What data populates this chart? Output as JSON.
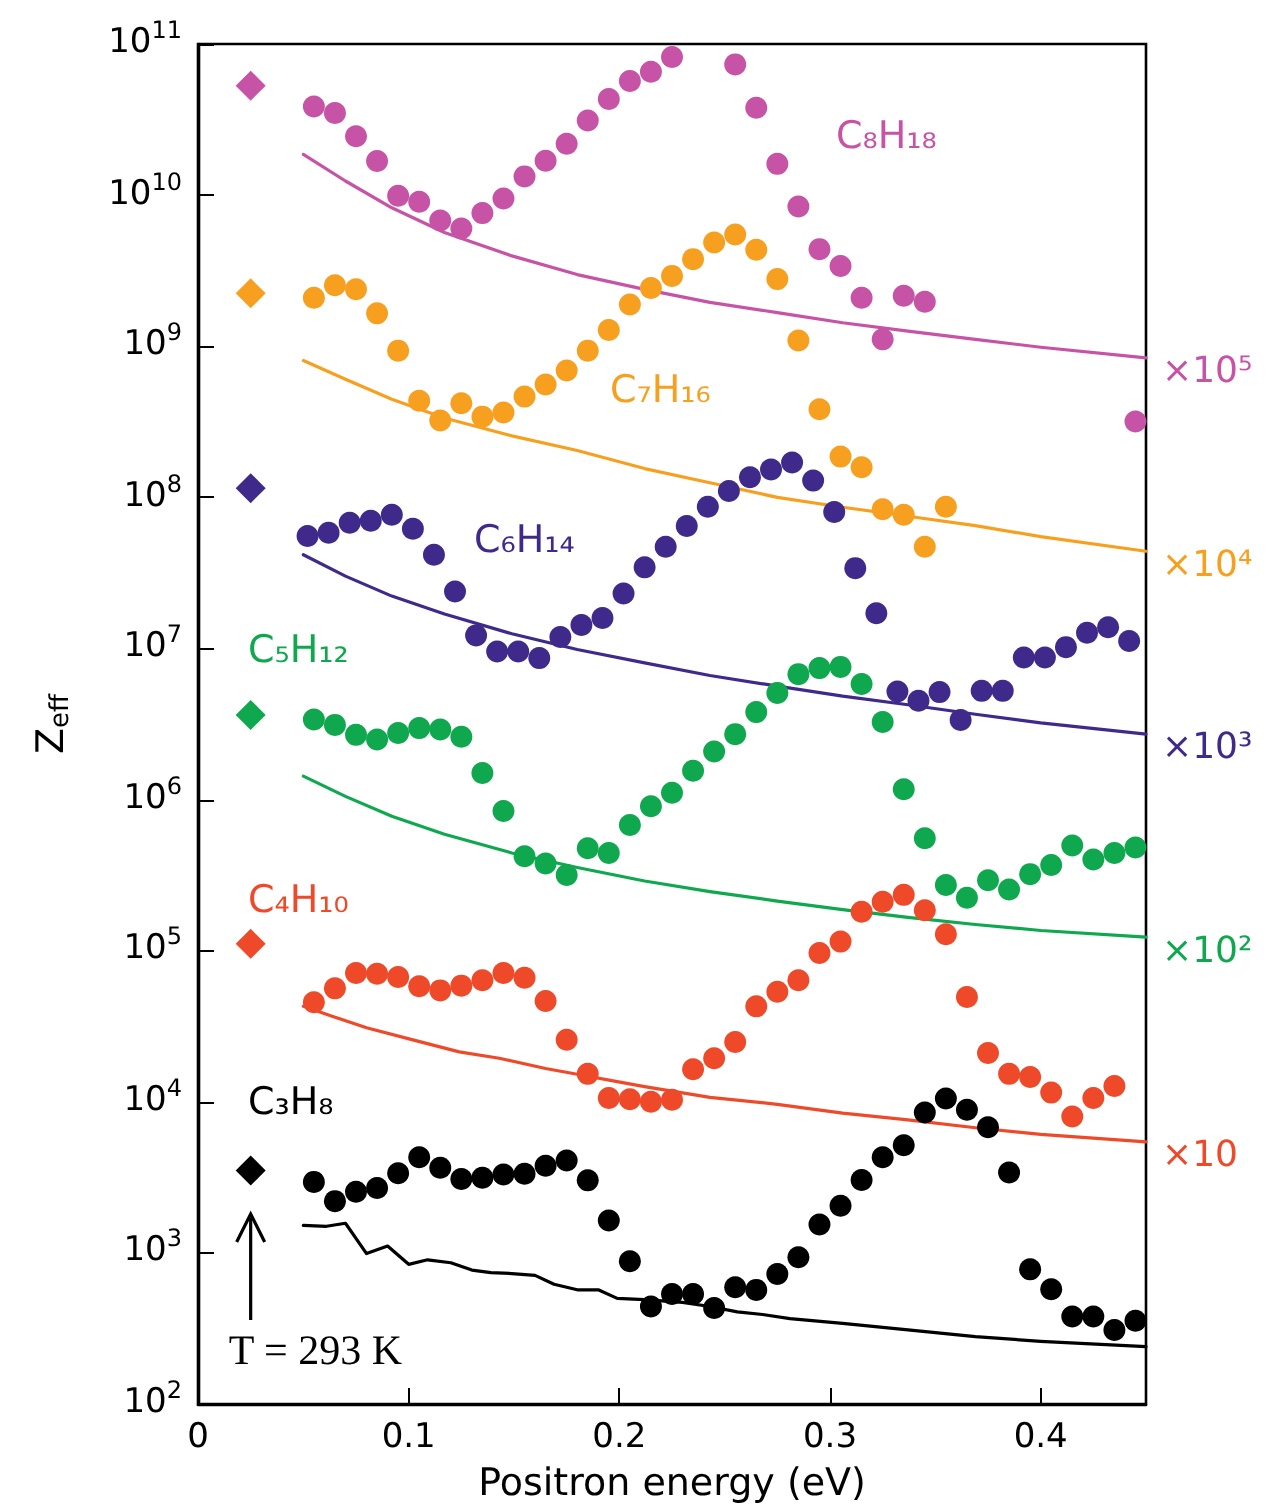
{
  "chart_data": {
    "type": "scatter",
    "xlabel": "Positron energy (eV)",
    "ylabel": "Z$_{eff}$",
    "xlim": [
      0,
      0.45
    ],
    "xticks": [
      0,
      0.1,
      0.2,
      0.3,
      0.4
    ],
    "ylim": [
      100,
      100000000000.0
    ],
    "log": "y",
    "yticks": [
      {
        "value": 100.0,
        "label": "10$^{2}$"
      },
      {
        "value": 1000.0,
        "label": "10$^{3}$"
      },
      {
        "value": 10000.0,
        "label": "10$^{4}$"
      },
      {
        "value": 100000.0,
        "label": "10$^{5}$"
      },
      {
        "value": 1000000.0,
        "label": "10$^{6}$"
      },
      {
        "value": 10000000.0,
        "label": "10$^{7}$"
      },
      {
        "value": 100000000.0,
        "label": "10$^{8}$"
      },
      {
        "value": 1000000000.0,
        "label": "10$^{9}$"
      },
      {
        "value": 10000000000.0,
        "label": "10$^{10}$"
      },
      {
        "value": 100000000000.0,
        "label": "10$^{11}$"
      }
    ],
    "grid": false,
    "legend": false,
    "series": [
      {
        "type": "line",
        "color": "#000000",
        "marker": "none",
        "line_style": "solid",
        "x": [
          0.05,
          0.061,
          0.07,
          0.08,
          0.09,
          0.1,
          0.109,
          0.12,
          0.13,
          0.139,
          0.149,
          0.16,
          0.169,
          0.18,
          0.19,
          0.199,
          0.212,
          0.23,
          0.243,
          0.256,
          0.268,
          0.281,
          0.306,
          0.337,
          0.369,
          0.4,
          0.45
        ],
        "values": [
          1520,
          1500,
          1570,
          990,
          1110,
          840,
          900,
          860,
          770,
          740,
          730,
          710,
          620,
          570,
          570,
          500,
          490,
          470,
          442,
          407,
          391,
          367,
          342,
          309,
          279,
          260,
          240
        ]
      },
      {
        "name": "C₃H₈",
        "color": "#000000",
        "marker": "circle",
        "x": [
          0.055,
          0.065,
          0.075,
          0.085,
          0.095,
          0.105,
          0.115,
          0.125,
          0.135,
          0.145,
          0.155,
          0.165,
          0.175,
          0.185,
          0.195,
          0.205,
          0.215,
          0.225,
          0.235,
          0.245,
          0.255,
          0.265,
          0.275,
          0.285,
          0.295,
          0.305,
          0.315,
          0.325,
          0.335,
          0.345,
          0.355,
          0.365,
          0.375,
          0.385,
          0.395,
          0.405,
          0.415,
          0.425,
          0.435,
          0.445
        ],
        "values": [
          2950,
          2200,
          2540,
          2690,
          3370,
          4300,
          3660,
          3080,
          3140,
          3300,
          3340,
          3770,
          4090,
          3020,
          1640,
          880,
          442,
          535,
          535,
          432,
          592,
          569,
          726,
          935,
          1540,
          2050,
          3040,
          4300,
          5160,
          8500,
          10500,
          8850,
          6790,
          3400,
          778,
          574,
          379,
          379,
          309,
          356
        ]
      },
      {
        "color": "#000000",
        "marker": "diamond",
        "x": [
          0.025
        ],
        "values": [
          3510
        ]
      },
      {
        "type": "line",
        "color": "#ee4a2a",
        "marker": "none",
        "line_style": "solid",
        "x": [
          0.05,
          0.064,
          0.08,
          0.102,
          0.124,
          0.143,
          0.165,
          0.18,
          0.199,
          0.212,
          0.243,
          0.275,
          0.306,
          0.337,
          0.369,
          0.4,
          0.45
        ],
        "values": [
          42800,
          36700,
          30900,
          25700,
          21400,
          19400,
          16600,
          15200,
          13600,
          12600,
          10700,
          9620,
          8410,
          7600,
          6730,
          6080,
          5430
        ]
      },
      {
        "name": "C₄H₁₀",
        "color": "#ee4a2a",
        "marker": "circle",
        "x": [
          0.055,
          0.065,
          0.075,
          0.085,
          0.095,
          0.105,
          0.115,
          0.125,
          0.135,
          0.145,
          0.155,
          0.165,
          0.175,
          0.185,
          0.195,
          0.205,
          0.215,
          0.225,
          0.235,
          0.245,
          0.255,
          0.265,
          0.275,
          0.285,
          0.295,
          0.305,
          0.315,
          0.325,
          0.335,
          0.345,
          0.355,
          0.365,
          0.375,
          0.385,
          0.395,
          0.405,
          0.415,
          0.425,
          0.435
        ],
        "values": [
          45500,
          56300,
          71100,
          70400,
          66900,
          58100,
          54600,
          58700,
          63700,
          71100,
          66200,
          46400,
          25700,
          15300,
          10600,
          10400,
          10000,
          10300,
          16400,
          19400,
          24900,
          42800,
          53500,
          63700,
          96600,
          114800,
          181000,
          211000,
          234000,
          185000,
          128500,
          49300,
          21000,
          15300,
          14600,
          11500,
          8000,
          10600,
          12700
        ]
      },
      {
        "color": "#ee4a2a",
        "marker": "diamond",
        "x": [
          0.025
        ],
        "values": [
          111000
        ]
      },
      {
        "type": "line",
        "color": "#10a84e",
        "marker": "none",
        "line_style": "solid",
        "x": [
          0.05,
          0.07,
          0.092,
          0.117,
          0.149,
          0.18,
          0.212,
          0.243,
          0.275,
          0.306,
          0.337,
          0.369,
          0.4,
          0.45
        ],
        "values": [
          1430000,
          1050000,
          776000,
          590000,
          443000,
          355000,
          289000,
          246000,
          213000,
          187000,
          166000,
          149000,
          136000,
          123000
        ]
      },
      {
        "name": "C₅H₁₂",
        "color": "#10a84e",
        "marker": "circle",
        "x": [
          0.055,
          0.065,
          0.075,
          0.085,
          0.095,
          0.105,
          0.115,
          0.125,
          0.135,
          0.145,
          0.155,
          0.165,
          0.175,
          0.185,
          0.195,
          0.205,
          0.215,
          0.225,
          0.235,
          0.245,
          0.255,
          0.265,
          0.275,
          0.285,
          0.295,
          0.305,
          0.315,
          0.325,
          0.335,
          0.345,
          0.355,
          0.365,
          0.375,
          0.385,
          0.395,
          0.405,
          0.415,
          0.425,
          0.435,
          0.445
        ],
        "values": [
          3390000,
          3120000,
          2680000,
          2500000,
          2760000,
          2970000,
          2910000,
          2600000,
          1500000,
          841000,
          422000,
          377000,
          317000,
          476000,
          443000,
          679000,
          904000,
          1110000,
          1550000,
          2080000,
          2710000,
          3790000,
          5080000,
          6760000,
          7410000,
          7550000,
          5810000,
          3260000,
          1170000,
          555000,
          272000,
          224000,
          292000,
          254000,
          321000,
          369000,
          496000,
          401000,
          443000,
          481000
        ]
      },
      {
        "color": "#10a84e",
        "marker": "diamond",
        "x": [
          0.025
        ],
        "values": [
          3630000
        ]
      },
      {
        "type": "line",
        "color": "#3f2a8c",
        "marker": "none",
        "line_style": "solid",
        "x": [
          0.05,
          0.07,
          0.092,
          0.117,
          0.149,
          0.18,
          0.212,
          0.243,
          0.275,
          0.306,
          0.337,
          0.369,
          0.4,
          0.45
        ],
        "values": [
          41700000,
          30100000,
          22200000,
          16900000,
          12500000,
          9840000,
          8030000,
          6620000,
          5630000,
          4830000,
          4240000,
          3670000,
          3220000,
          2710000
        ]
      },
      {
        "name": "C₆H₁₄",
        "color": "#3f2a8c",
        "marker": "circle",
        "x": [
          0.052,
          0.062,
          0.072,
          0.082,
          0.092,
          0.102,
          0.112,
          0.122,
          0.132,
          0.142,
          0.152,
          0.162,
          0.172,
          0.182,
          0.192,
          0.202,
          0.212,
          0.222,
          0.232,
          0.242,
          0.252,
          0.262,
          0.272,
          0.282,
          0.292,
          0.302,
          0.312,
          0.322,
          0.332,
          0.342,
          0.352,
          0.362,
          0.372,
          0.382,
          0.392,
          0.402,
          0.412,
          0.422,
          0.432,
          0.442
        ],
        "values": [
          55500000,
          58300000,
          67900000,
          70000000,
          76700000,
          61900000,
          41700000,
          23800000,
          12200000,
          9550000,
          9550000,
          8630000,
          11900000,
          14300000,
          15900000,
          23100000,
          34400000,
          47100000,
          64600000,
          86700000,
          110000000,
          136000000,
          153000000,
          170000000,
          129000000,
          80000000,
          34000000,
          17100000,
          5190000,
          4500000,
          5140000,
          3360000,
          5240000,
          5240000,
          8710000,
          8710000,
          10200000,
          12700000,
          13800000,
          11200000
        ]
      },
      {
        "color": "#3f2a8c",
        "marker": "diamond",
        "x": [
          0.025
        ],
        "values": [
          115000000
        ]
      },
      {
        "type": "line",
        "color": "#f7a020",
        "marker": "none",
        "line_style": "solid",
        "x": [
          0.05,
          0.07,
          0.092,
          0.117,
          0.149,
          0.18,
          0.212,
          0.243,
          0.275,
          0.306,
          0.337,
          0.369,
          0.4,
          0.45
        ],
        "values": [
          804000000,
          604000000,
          446000000,
          335000000,
          255000000,
          204000000,
          155000000,
          125000000,
          100000000,
          86000000,
          75000000,
          65000000,
          55000000,
          44000000
        ]
      },
      {
        "name": "C₇H₁₆",
        "color": "#f7a020",
        "marker": "circle",
        "x": [
          0.055,
          0.065,
          0.075,
          0.085,
          0.095,
          0.105,
          0.115,
          0.125,
          0.135,
          0.145,
          0.155,
          0.165,
          0.175,
          0.185,
          0.195,
          0.205,
          0.215,
          0.225,
          0.235,
          0.245,
          0.255,
          0.265,
          0.275,
          0.285,
          0.295,
          0.305,
          0.315,
          0.325,
          0.335,
          0.345,
          0.355
        ],
        "values": [
          2090000000,
          2530000000,
          2380000000,
          1650000000,
          935000000,
          436000000,
          322000000,
          419000000,
          342000000,
          364000000,
          464000000,
          558000000,
          690000000,
          935000000,
          1280000000,
          1890000000,
          2430000000,
          2920000000,
          3770000000,
          4850000000,
          5480000000,
          4350000000,
          2780000000,
          1090000000,
          383000000,
          186000000,
          158000000,
          83300000,
          76700000,
          47100000,
          86700000
        ]
      },
      {
        "color": "#f7a020",
        "marker": "diamond",
        "x": [
          0.025
        ],
        "values": [
          2240000000
        ]
      },
      {
        "type": "line",
        "color": "#c653a6",
        "marker": "none",
        "line_style": "solid",
        "x": [
          0.05,
          0.07,
          0.092,
          0.117,
          0.149,
          0.18,
          0.212,
          0.243,
          0.275,
          0.306,
          0.337,
          0.369,
          0.4,
          0.45
        ],
        "values": [
          18600000000,
          12400000000,
          8240000000,
          5660000000,
          3960000000,
          2980000000,
          2380000000,
          1950000000,
          1670000000,
          1430000000,
          1260000000,
          1110000000,
          985000000,
          837000000
        ]
      },
      {
        "name": "C₈H₁₈",
        "color": "#c653a6",
        "marker": "circle",
        "x": [
          0.055,
          0.065,
          0.075,
          0.085,
          0.095,
          0.105,
          0.115,
          0.125,
          0.135,
          0.145,
          0.155,
          0.165,
          0.175,
          0.185,
          0.195,
          0.205,
          0.215,
          0.225,
          0.255,
          0.265,
          0.275,
          0.285,
          0.295,
          0.305,
          0.315,
          0.325,
          0.335,
          0.345,
          0.445
        ],
        "values": [
          38600000000,
          34900000000,
          24500000000,
          16800000000,
          9910000000,
          9040000000,
          6790000000,
          6010000000,
          7600000000,
          9500000000,
          13300000000,
          16900000000,
          21900000000,
          31200000000,
          43200000000,
          56900000000,
          65600000000,
          82000000000,
          73300000000,
          37900000000,
          16100000000,
          8410000000,
          4390000000,
          3400000000,
          2090000000,
          1110000000,
          2160000000,
          1970000000,
          318000000
        ]
      },
      {
        "color": "#c653a6",
        "marker": "diamond",
        "x": [
          0.025
        ],
        "values": [
          53000000000
        ]
      }
    ],
    "annotations": [
      "×10",
      "×10²",
      "×10³",
      "×10⁴",
      "×10⁵",
      "T = 293 K"
    ]
  }
}
